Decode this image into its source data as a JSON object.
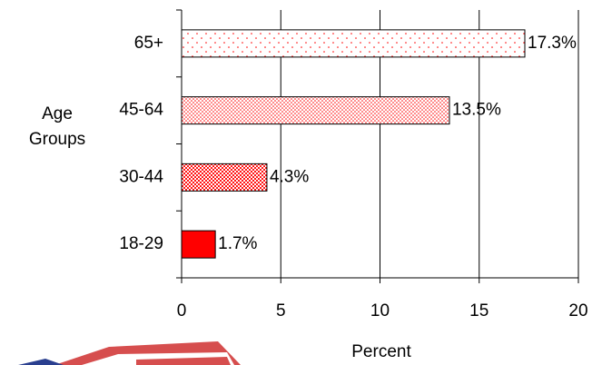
{
  "chart_data": {
    "type": "barh",
    "categories": [
      "18-29",
      "30-44",
      "45-64",
      "65+"
    ],
    "values": [
      1.7,
      4.3,
      13.5,
      17.3
    ],
    "value_labels": [
      "1.7%",
      "4.3%",
      "13.5%",
      "17.3%"
    ],
    "color": "#ff0000",
    "xlim": [
      0,
      20
    ],
    "xticks": [
      0,
      5,
      10,
      15,
      20
    ],
    "xlabel": "Percent",
    "ylabel": "Age Groups",
    "grid": true
  }
}
